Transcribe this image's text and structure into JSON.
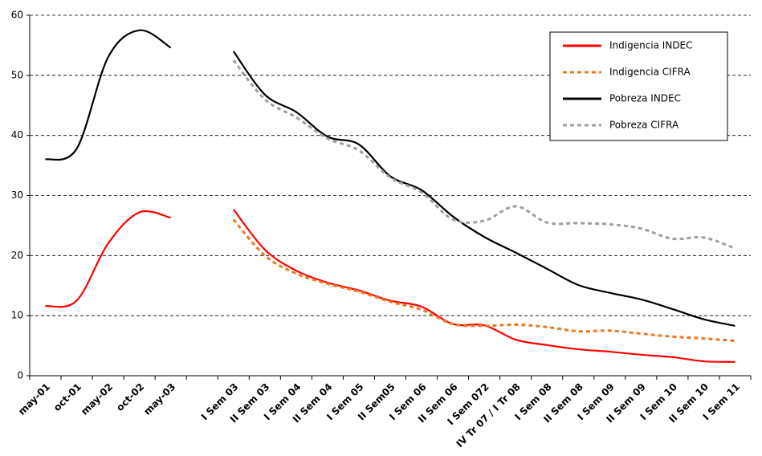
{
  "chart_data": {
    "type": "line",
    "categories": [
      "may-01",
      "oct-01",
      "may-02",
      "oct-02",
      "may-03",
      null,
      "I Sem 03",
      "II Sem 03",
      "I Sem 04",
      "II Sem 04",
      "I Sem 05",
      "II Sem05",
      "I Sem 06",
      "II Sem 06",
      "I Sem 072",
      "IV Tr 07 / I Tr 08",
      "I Sem 08",
      "II Sem 08",
      "I Sem 09",
      "II Sem 09",
      "I Sem 10",
      "II Sem 10",
      "I Sem 11"
    ],
    "series": [
      {
        "name": "Indigencia INDEC",
        "color": "#ff0000",
        "dash": false,
        "values": [
          11.6,
          12.5,
          22,
          27.2,
          26.3,
          null,
          27.7,
          21,
          17.5,
          15.5,
          14.2,
          12.5,
          11.5,
          8.6,
          8.4,
          6,
          5.1,
          4.4,
          4,
          3.5,
          3.1,
          2.4,
          2.3
        ]
      },
      {
        "name": "Indigencia CIFRA",
        "color": "#f07820",
        "dash": true,
        "values": [
          null,
          null,
          null,
          null,
          null,
          null,
          26,
          20,
          17,
          15.3,
          14,
          12.3,
          11,
          8.6,
          8.3,
          8.5,
          8.1,
          7.4,
          7.5,
          7,
          6.5,
          6.2,
          5.8
        ]
      },
      {
        "name": "Pobreza INDEC",
        "color": "#000000",
        "dash": false,
        "values": [
          36,
          37.8,
          53,
          57.5,
          54.6,
          null,
          54,
          46.8,
          43.9,
          39.8,
          38.5,
          33.2,
          30.9,
          26.5,
          23.1,
          20.5,
          17.8,
          15.1,
          13.8,
          12.7,
          11.1,
          9.4,
          8.3
        ]
      },
      {
        "name": "Pobreza CIFRA",
        "color": "#a0a0a0",
        "dash": true,
        "values": [
          null,
          null,
          null,
          null,
          null,
          null,
          52.5,
          46,
          43,
          39.5,
          37.5,
          33,
          30.5,
          26,
          25.8,
          28.2,
          25.5,
          25.4,
          25.2,
          24.5,
          22.8,
          23,
          21.2
        ]
      }
    ],
    "ylim": [
      0,
      60
    ],
    "yticks": [
      0,
      10,
      20,
      30,
      40,
      50,
      60
    ],
    "grid": true,
    "legend": "upper right"
  }
}
